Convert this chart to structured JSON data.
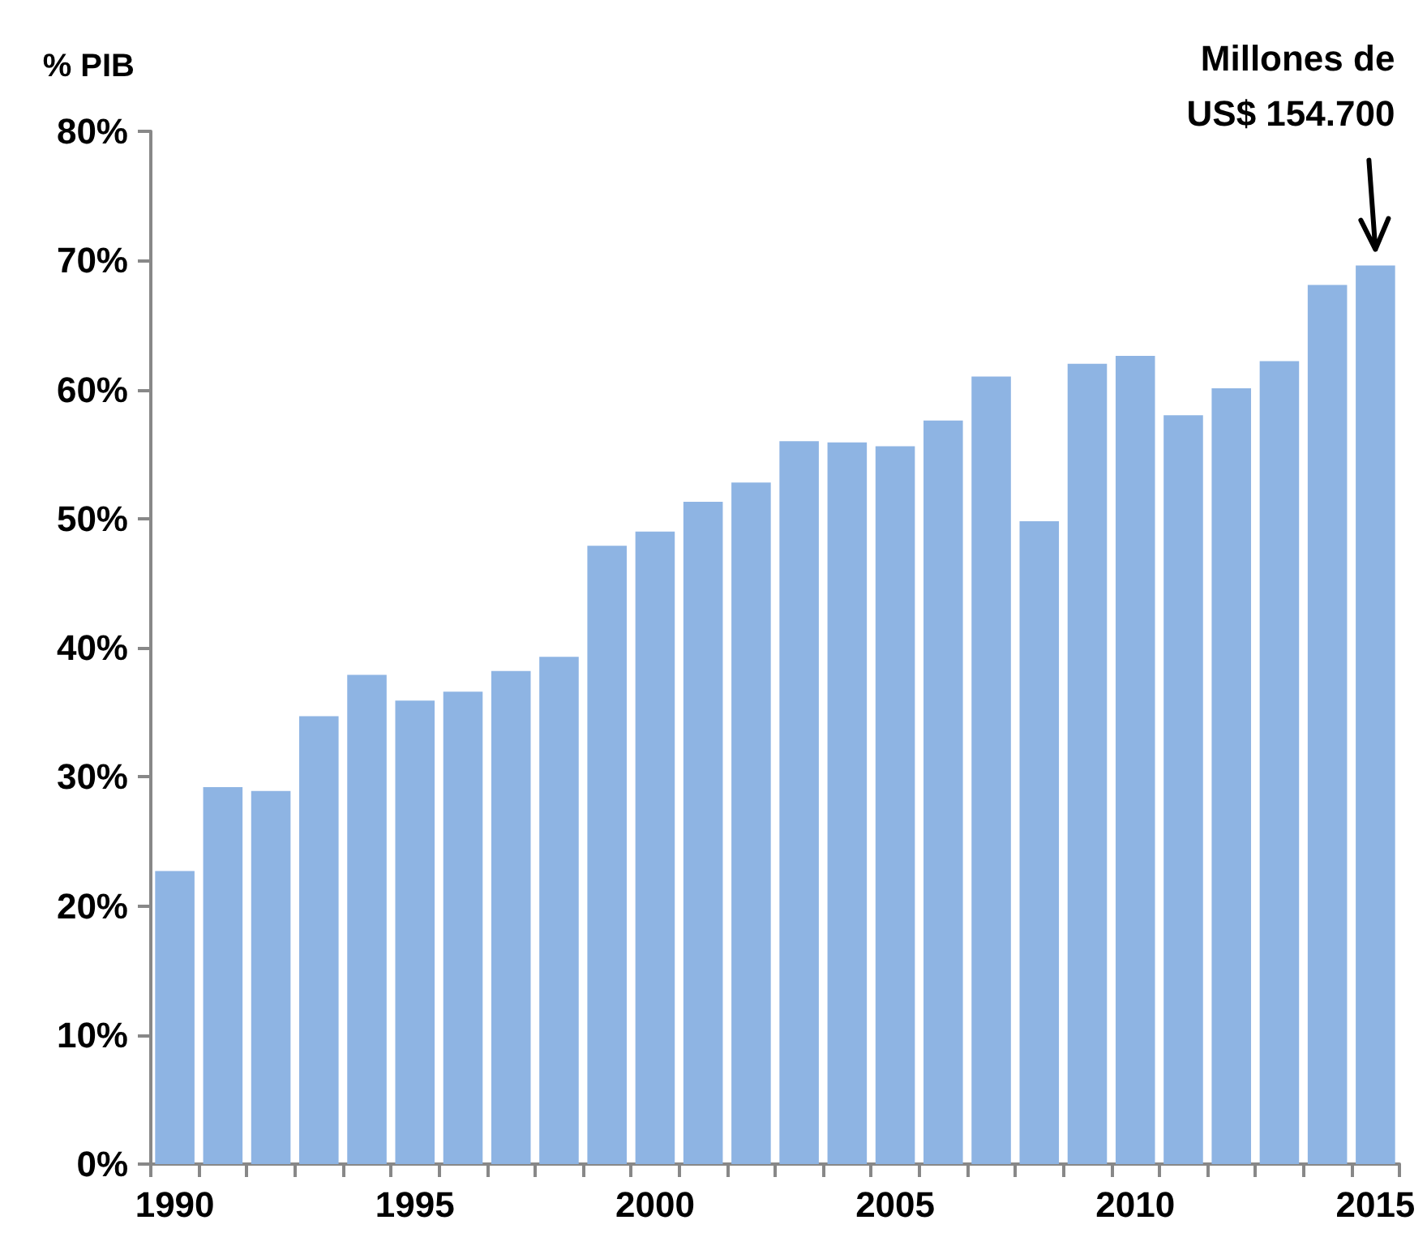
{
  "chart_data": {
    "type": "bar",
    "ylabel": "% PIB",
    "categories": [
      "1990",
      null,
      null,
      null,
      null,
      "1995",
      null,
      null,
      null,
      null,
      "2000",
      null,
      null,
      null,
      null,
      "2005",
      null,
      null,
      null,
      null,
      "2010",
      null,
      null,
      null,
      null,
      "2015"
    ],
    "values": [
      22.7,
      29.2,
      28.9,
      34.7,
      37.9,
      35.9,
      36.6,
      38.2,
      39.3,
      47.9,
      49.0,
      51.3,
      52.8,
      56.0,
      55.9,
      55.6,
      57.6,
      61.0,
      49.8,
      62.0,
      62.6,
      58.0,
      60.1,
      62.2,
      68.1,
      69.6
    ],
    "color": "#8eb4e3",
    "ylim": [
      0,
      80
    ],
    "yticks": [
      {
        "value": 0,
        "label": "0%"
      },
      {
        "value": 10,
        "label": "10%"
      },
      {
        "value": 20,
        "label": "20%"
      },
      {
        "value": 30,
        "label": "30%"
      },
      {
        "value": 40,
        "label": "40%"
      },
      {
        "value": 50,
        "label": "50%"
      },
      {
        "value": 60,
        "label": "60%"
      },
      {
        "value": 70,
        "label": "70%"
      },
      {
        "value": 80,
        "label": "80%"
      }
    ],
    "grid": false,
    "annotations": [
      "Millones de\nUS$ 154.700"
    ]
  }
}
